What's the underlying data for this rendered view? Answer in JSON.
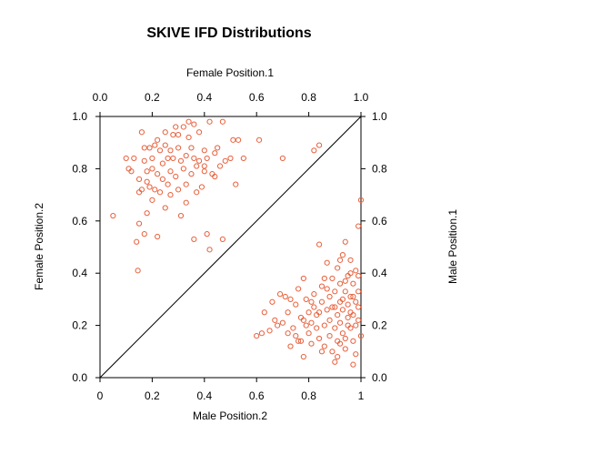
{
  "chart_data": {
    "type": "scatter",
    "title": "SKIVE IFD Distributions",
    "axes": {
      "bottom": {
        "label": "Male Position.2",
        "range": [
          0,
          1
        ],
        "ticks": [
          0,
          0.2,
          0.4,
          0.6,
          0.8,
          1
        ],
        "tick_labels": [
          "0",
          "0.2",
          "0.4",
          "0.6",
          "0.8",
          "1"
        ]
      },
      "top": {
        "label": "Female Position.1",
        "range": [
          0,
          1
        ],
        "ticks": [
          0,
          0.2,
          0.4,
          0.6,
          0.8,
          1
        ],
        "tick_labels": [
          "0.0",
          "0.2",
          "0.4",
          "0.6",
          "0.8",
          "1.0"
        ]
      },
      "left": {
        "label": "Female Position.2",
        "range": [
          0,
          1
        ],
        "ticks": [
          0,
          0.2,
          0.4,
          0.6,
          0.8,
          1
        ],
        "tick_labels": [
          "0.0",
          "0.2",
          "0.4",
          "0.6",
          "0.8",
          "1.0"
        ]
      },
      "right": {
        "label": "Male Position.1",
        "range": [
          0,
          1
        ],
        "ticks": [
          0,
          0.2,
          0.4,
          0.6,
          0.8,
          1
        ],
        "tick_labels": [
          "0.0",
          "0.2",
          "0.4",
          "0.6",
          "0.8",
          "1.0"
        ]
      }
    },
    "reference_line": {
      "from": [
        0,
        0
      ],
      "to": [
        1,
        1
      ]
    },
    "grid": false,
    "legend": "none",
    "marker": "open-circle",
    "point_color": "#e8603c",
    "series": [
      {
        "points": [
          [
            0.05,
            0.62
          ],
          [
            0.1,
            0.84
          ],
          [
            0.11,
            0.8
          ],
          [
            0.12,
            0.79
          ],
          [
            0.13,
            0.84
          ],
          [
            0.14,
            0.52
          ],
          [
            0.145,
            0.41
          ],
          [
            0.15,
            0.59
          ],
          [
            0.15,
            0.76
          ],
          [
            0.16,
            0.94
          ],
          [
            0.16,
            0.72
          ],
          [
            0.17,
            0.88
          ],
          [
            0.17,
            0.83
          ],
          [
            0.17,
            0.55
          ],
          [
            0.18,
            0.79
          ],
          [
            0.18,
            0.75
          ],
          [
            0.19,
            0.88
          ],
          [
            0.19,
            0.73
          ],
          [
            0.2,
            0.8
          ],
          [
            0.2,
            0.68
          ],
          [
            0.2,
            0.84
          ],
          [
            0.21,
            0.72
          ],
          [
            0.21,
            0.89
          ],
          [
            0.22,
            0.54
          ],
          [
            0.22,
            0.78
          ],
          [
            0.23,
            0.87
          ],
          [
            0.23,
            0.71
          ],
          [
            0.24,
            0.82
          ],
          [
            0.24,
            0.76
          ],
          [
            0.25,
            0.89
          ],
          [
            0.25,
            0.65
          ],
          [
            0.26,
            0.74
          ],
          [
            0.26,
            0.84
          ],
          [
            0.27,
            0.79
          ],
          [
            0.27,
            0.7
          ],
          [
            0.28,
            0.93
          ],
          [
            0.28,
            0.84
          ],
          [
            0.29,
            0.96
          ],
          [
            0.29,
            0.77
          ],
          [
            0.3,
            0.88
          ],
          [
            0.3,
            0.72
          ],
          [
            0.31,
            0.83
          ],
          [
            0.31,
            0.62
          ],
          [
            0.32,
            0.96
          ],
          [
            0.32,
            0.8
          ],
          [
            0.33,
            0.85
          ],
          [
            0.33,
            0.74
          ],
          [
            0.34,
            0.92
          ],
          [
            0.34,
            0.98
          ],
          [
            0.35,
            0.88
          ],
          [
            0.35,
            0.78
          ],
          [
            0.36,
            0.53
          ],
          [
            0.36,
            0.84
          ],
          [
            0.37,
            0.71
          ],
          [
            0.37,
            0.81
          ],
          [
            0.38,
            0.94
          ],
          [
            0.38,
            0.83
          ],
          [
            0.39,
            0.73
          ],
          [
            0.4,
            0.87
          ],
          [
            0.4,
            0.79
          ],
          [
            0.41,
            0.55
          ],
          [
            0.41,
            0.84
          ],
          [
            0.42,
            0.98
          ],
          [
            0.42,
            0.49
          ],
          [
            0.43,
            0.78
          ],
          [
            0.44,
            0.86
          ],
          [
            0.45,
            0.88
          ],
          [
            0.46,
            0.81
          ],
          [
            0.47,
            0.98
          ],
          [
            0.47,
            0.53
          ],
          [
            0.5,
            0.84
          ],
          [
            0.51,
            0.91
          ],
          [
            0.52,
            0.74
          ],
          [
            0.53,
            0.91
          ],
          [
            0.55,
            0.84
          ],
          [
            0.61,
            0.91
          ],
          [
            0.7,
            0.84
          ],
          [
            0.82,
            0.87
          ],
          [
            0.84,
            0.89
          ],
          [
            0.15,
            0.71
          ],
          [
            0.18,
            0.63
          ],
          [
            0.22,
            0.91
          ],
          [
            0.25,
            0.94
          ],
          [
            0.27,
            0.87
          ],
          [
            0.3,
            0.93
          ],
          [
            0.33,
            0.67
          ],
          [
            0.36,
            0.97
          ],
          [
            0.4,
            0.81
          ],
          [
            0.44,
            0.77
          ],
          [
            0.48,
            0.83
          ],
          [
            0.6,
            0.16
          ],
          [
            0.62,
            0.17
          ],
          [
            0.63,
            0.25
          ],
          [
            0.65,
            0.18
          ],
          [
            0.66,
            0.29
          ],
          [
            0.67,
            0.22
          ],
          [
            0.68,
            0.2
          ],
          [
            0.69,
            0.32
          ],
          [
            0.7,
            0.21
          ],
          [
            0.71,
            0.31
          ],
          [
            0.72,
            0.25
          ],
          [
            0.72,
            0.17
          ],
          [
            0.73,
            0.12
          ],
          [
            0.74,
            0.19
          ],
          [
            0.75,
            0.28
          ],
          [
            0.75,
            0.16
          ],
          [
            0.76,
            0.34
          ],
          [
            0.77,
            0.23
          ],
          [
            0.77,
            0.14
          ],
          [
            0.78,
            0.08
          ],
          [
            0.78,
            0.38
          ],
          [
            0.79,
            0.2
          ],
          [
            0.79,
            0.3
          ],
          [
            0.8,
            0.25
          ],
          [
            0.8,
            0.17
          ],
          [
            0.81,
            0.13
          ],
          [
            0.81,
            0.21
          ],
          [
            0.82,
            0.32
          ],
          [
            0.82,
            0.27
          ],
          [
            0.83,
            0.19
          ],
          [
            0.83,
            0.24
          ],
          [
            0.84,
            0.15
          ],
          [
            0.84,
            0.51
          ],
          [
            0.85,
            0.29
          ],
          [
            0.85,
            0.35
          ],
          [
            0.86,
            0.2
          ],
          [
            0.86,
            0.12
          ],
          [
            0.87,
            0.26
          ],
          [
            0.87,
            0.44
          ],
          [
            0.88,
            0.31
          ],
          [
            0.88,
            0.16
          ],
          [
            0.88,
            0.22
          ],
          [
            0.89,
            0.38
          ],
          [
            0.89,
            0.27
          ],
          [
            0.9,
            0.06
          ],
          [
            0.9,
            0.33
          ],
          [
            0.9,
            0.19
          ],
          [
            0.91,
            0.42
          ],
          [
            0.91,
            0.24
          ],
          [
            0.91,
            0.14
          ],
          [
            0.92,
            0.29
          ],
          [
            0.92,
            0.36
          ],
          [
            0.92,
            0.21
          ],
          [
            0.93,
            0.47
          ],
          [
            0.93,
            0.26
          ],
          [
            0.93,
            0.17
          ],
          [
            0.94,
            0.33
          ],
          [
            0.94,
            0.11
          ],
          [
            0.94,
            0.52
          ],
          [
            0.95,
            0.23
          ],
          [
            0.95,
            0.39
          ],
          [
            0.95,
            0.28
          ],
          [
            0.96,
            0.19
          ],
          [
            0.96,
            0.45
          ],
          [
            0.96,
            0.31
          ],
          [
            0.97,
            0.14
          ],
          [
            0.97,
            0.24
          ],
          [
            0.97,
            0.36
          ],
          [
            0.98,
            0.29
          ],
          [
            0.98,
            0.41
          ],
          [
            0.98,
            0.09
          ],
          [
            0.99,
            0.22
          ],
          [
            0.99,
            0.33
          ],
          [
            0.99,
            0.58
          ],
          [
            1.0,
            0.16
          ],
          [
            1.0,
            0.68
          ],
          [
            0.97,
            0.05
          ],
          [
            0.86,
            0.38
          ],
          [
            0.89,
            0.1
          ],
          [
            0.92,
            0.13
          ],
          [
            0.94,
            0.37
          ],
          [
            0.95,
            0.2
          ],
          [
            0.96,
            0.25
          ],
          [
            0.98,
            0.2
          ],
          [
            0.99,
            0.27
          ],
          [
            0.93,
            0.3
          ],
          [
            0.9,
            0.27
          ],
          [
            0.87,
            0.34
          ],
          [
            0.84,
            0.25
          ],
          [
            0.81,
            0.29
          ],
          [
            0.78,
            0.22
          ],
          [
            0.76,
            0.14
          ],
          [
            0.73,
            0.3
          ],
          [
            0.85,
            0.1
          ],
          [
            0.91,
            0.08
          ],
          [
            0.94,
            0.15
          ],
          [
            0.97,
            0.31
          ],
          [
            0.96,
            0.4
          ],
          [
            0.99,
            0.39
          ],
          [
            0.92,
            0.45
          ]
        ]
      }
    ]
  }
}
